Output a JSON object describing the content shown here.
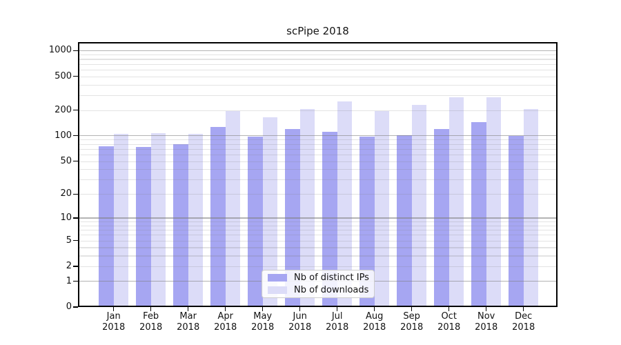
{
  "chart_data": {
    "type": "bar",
    "title": "scPipe 2018",
    "year": "2018",
    "categories": [
      "Jan",
      "Feb",
      "Mar",
      "Apr",
      "May",
      "Jun",
      "Jul",
      "Aug",
      "Sep",
      "Oct",
      "Nov",
      "Dec"
    ],
    "series": [
      {
        "name": "Nb of distinct IPs",
        "color": "#a6a6f2",
        "values": [
          75,
          74,
          79,
          128,
          98,
          120,
          111,
          98,
          101,
          120,
          145,
          100
        ]
      },
      {
        "name": "Nb of downloads",
        "color": "#dcdcf8",
        "values": [
          106,
          108,
          105,
          195,
          166,
          205,
          255,
          196,
          230,
          283,
          283,
          207
        ]
      }
    ],
    "y_scale": "log10(1+x)",
    "y_ticks": [
      1000,
      500,
      200,
      100,
      50,
      20,
      10,
      5,
      2,
      1,
      0
    ],
    "ylim": [
      0,
      1260
    ],
    "grid": true,
    "legend_position": "lower center",
    "colors": {
      "major_grid": "#b0b0b0",
      "minor_grid": "#e4e4e4",
      "spine": "#000000",
      "text": "#111111",
      "background": "#ffffff"
    }
  }
}
